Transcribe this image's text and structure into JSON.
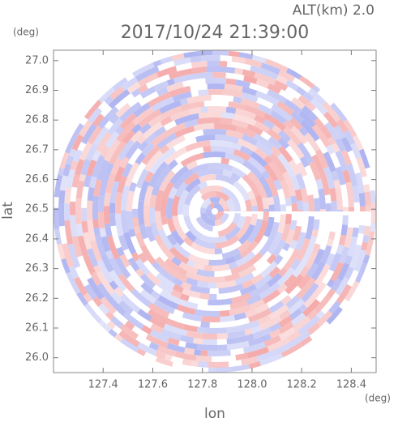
{
  "chart_data": {
    "type": "radar-ppi",
    "title": "2017/10/24 21:39:00",
    "annotation": "ALT(km) 2.0",
    "x_label": "lon",
    "y_label": "lat",
    "x_unit": "(deg)",
    "y_unit": "(deg)",
    "xlim": [
      127.2,
      128.5
    ],
    "ylim": [
      25.95,
      27.035
    ],
    "xticks": [
      127.4,
      127.6,
      127.8,
      {
        "value": 128.0,
        "label": "128.0"
      },
      128.2,
      128.4
    ],
    "yticks": [
      {
        "value": 26.0,
        "label": "26.0"
      },
      26.1,
      26.2,
      26.3,
      26.4,
      26.5,
      26.6,
      26.7,
      26.8,
      26.9,
      {
        "value": 27.0,
        "label": "27.0"
      }
    ],
    "colors": [
      "#f4a6a6",
      "#aab0f0"
    ]
  }
}
